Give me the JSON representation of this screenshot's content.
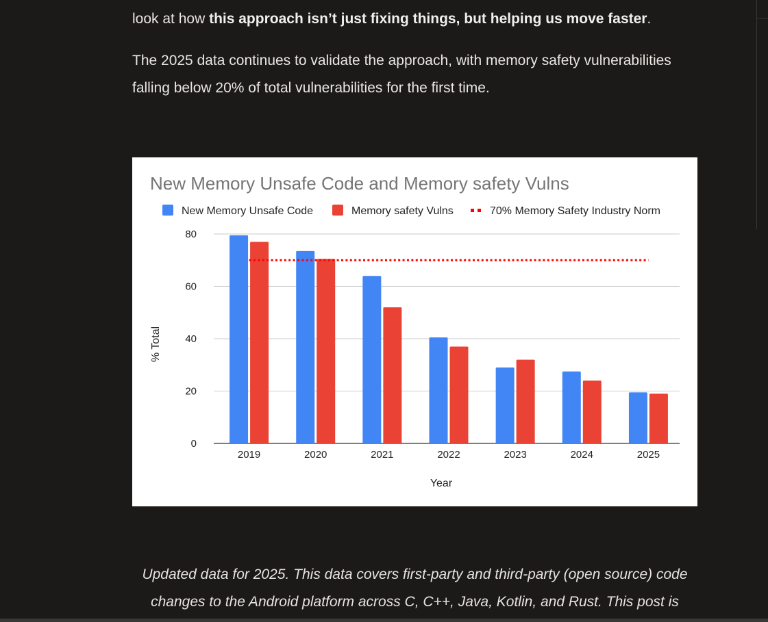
{
  "article": {
    "intro_prefix": "look at how ",
    "intro_bold": "this approach isn’t just fixing things, but helping us move faster",
    "intro_suffix": ".",
    "data_paragraph_line1": "The 2025 data continues to validate the approach, with memory safety vulnerabilities",
    "data_paragraph_line2": "falling below 20% of total vulnerabilities for the first time."
  },
  "caption": {
    "line1": "Updated data for 2025. This data covers first-party and third-party (open source) code",
    "line2": "changes to the Android platform across C, C++, Java, Kotlin, and Rust. This post is"
  },
  "chart_data": {
    "type": "bar",
    "title": "New Memory Unsafe Code and Memory safety Vulns",
    "xlabel": "Year",
    "ylabel": "% Total",
    "categories": [
      "2019",
      "2020",
      "2021",
      "2022",
      "2023",
      "2024",
      "2025"
    ],
    "series": [
      {
        "name": "New Memory Unsafe Code",
        "color": "#4285f4",
        "values": [
          79.5,
          73.5,
          64,
          40.5,
          29,
          27.5,
          19.5
        ]
      },
      {
        "name": "Memory safety Vulns",
        "color": "#ea4335",
        "values": [
          77,
          70.5,
          52,
          37,
          32,
          24,
          19
        ]
      }
    ],
    "reference_line": {
      "name": "70% Memory Safety Industry Norm",
      "value": 70,
      "color": "#ff0000",
      "style": "dotted"
    },
    "ylim": [
      0,
      80
    ],
    "yticks": [
      0,
      20,
      40,
      60,
      80
    ],
    "grid": true,
    "legend_position": "top"
  }
}
